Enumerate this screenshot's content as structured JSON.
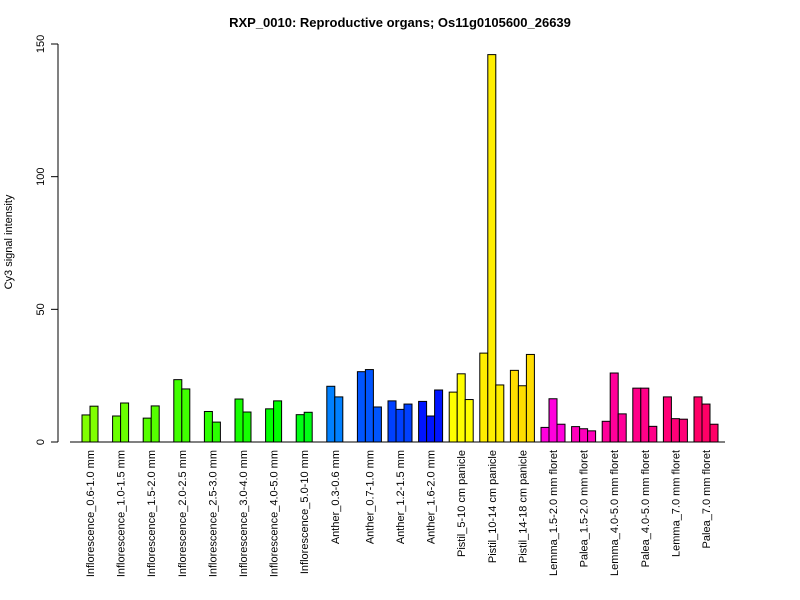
{
  "chart_data": {
    "type": "bar",
    "title": "RXP_0010: Reproductive organs; Os11g0105600_26639",
    "xlabel": "",
    "ylabel": "Cy3 signal intensity",
    "ylim": [
      0,
      150
    ],
    "yticks": [
      0,
      50,
      100,
      150
    ],
    "grid": false,
    "groups": [
      {
        "label": "Inflorescence_0.6-1.0 mm",
        "color": "#80ff00",
        "values": [
          10.2,
          13.5
        ]
      },
      {
        "label": "Inflorescence_1.0-1.5 mm",
        "color": "#6aff00",
        "values": [
          9.8,
          14.7
        ]
      },
      {
        "label": "Inflorescence_1.5-2.0 mm",
        "color": "#55ff00",
        "values": [
          9.0,
          13.6
        ]
      },
      {
        "label": "Inflorescence_2.0-2.5 mm",
        "color": "#40ff00",
        "values": [
          23.5,
          20.0
        ]
      },
      {
        "label": "Inflorescence_2.5-3.0 mm",
        "color": "#2bff00",
        "values": [
          11.5,
          7.5
        ]
      },
      {
        "label": "Inflorescence_3.0-4.0 mm",
        "color": "#15ff00",
        "values": [
          16.2,
          11.3
        ]
      },
      {
        "label": "Inflorescence_4.0-5.0 mm",
        "color": "#00ff00",
        "values": [
          12.5,
          15.5
        ]
      },
      {
        "label": "Inflorescence_5.0-10 mm",
        "color": "#00ff15",
        "values": [
          10.3,
          11.2
        ]
      },
      {
        "label": "Anther_0.3-0.6 mm",
        "color": "#0080ff",
        "values": [
          21.0,
          17.0
        ]
      },
      {
        "label": "Anther_0.7-1.0 mm",
        "color": "#0055ff",
        "values": [
          26.5,
          27.3,
          13.2
        ]
      },
      {
        "label": "Anther_1.2-1.5 mm",
        "color": "#0040ff",
        "values": [
          15.5,
          12.3,
          14.3
        ]
      },
      {
        "label": "Anther_1.6-2.0 mm",
        "color": "#0015ff",
        "values": [
          15.3,
          9.8,
          19.6
        ]
      },
      {
        "label": "Pistil_5-10 cm panicle",
        "color": "#ffff00",
        "values": [
          18.8,
          25.7,
          16.0
        ]
      },
      {
        "label": "Pistil_10-14 cm panicle",
        "color": "#ffee00",
        "values": [
          33.5,
          146.0,
          21.5
        ]
      },
      {
        "label": "Pistil_14-18 cm panicle",
        "color": "#ffdd00",
        "values": [
          27.0,
          21.2,
          33.0
        ]
      },
      {
        "label": "Lemma_1.5-2.0 mm floret",
        "color": "#ff00dd",
        "values": [
          5.5,
          16.3,
          6.7
        ]
      },
      {
        "label": "Palea_1.5-2.0 mm floret",
        "color": "#ff00bb",
        "values": [
          5.8,
          5.0,
          4.2
        ]
      },
      {
        "label": "Lemma_4.0-5.0 mm floret",
        "color": "#ff0099",
        "values": [
          7.8,
          26.0,
          10.6
        ]
      },
      {
        "label": "Palea_4.0-5.0 mm floret",
        "color": "#ff0088",
        "values": [
          20.3,
          20.3,
          5.9
        ]
      },
      {
        "label": "Lemma_7.0 mm floret",
        "color": "#ff0077",
        "values": [
          17.0,
          8.8,
          8.6
        ]
      },
      {
        "label": "Palea_7.0 mm floret",
        "color": "#ff0066",
        "values": [
          17.0,
          14.3,
          6.7
        ]
      }
    ]
  }
}
